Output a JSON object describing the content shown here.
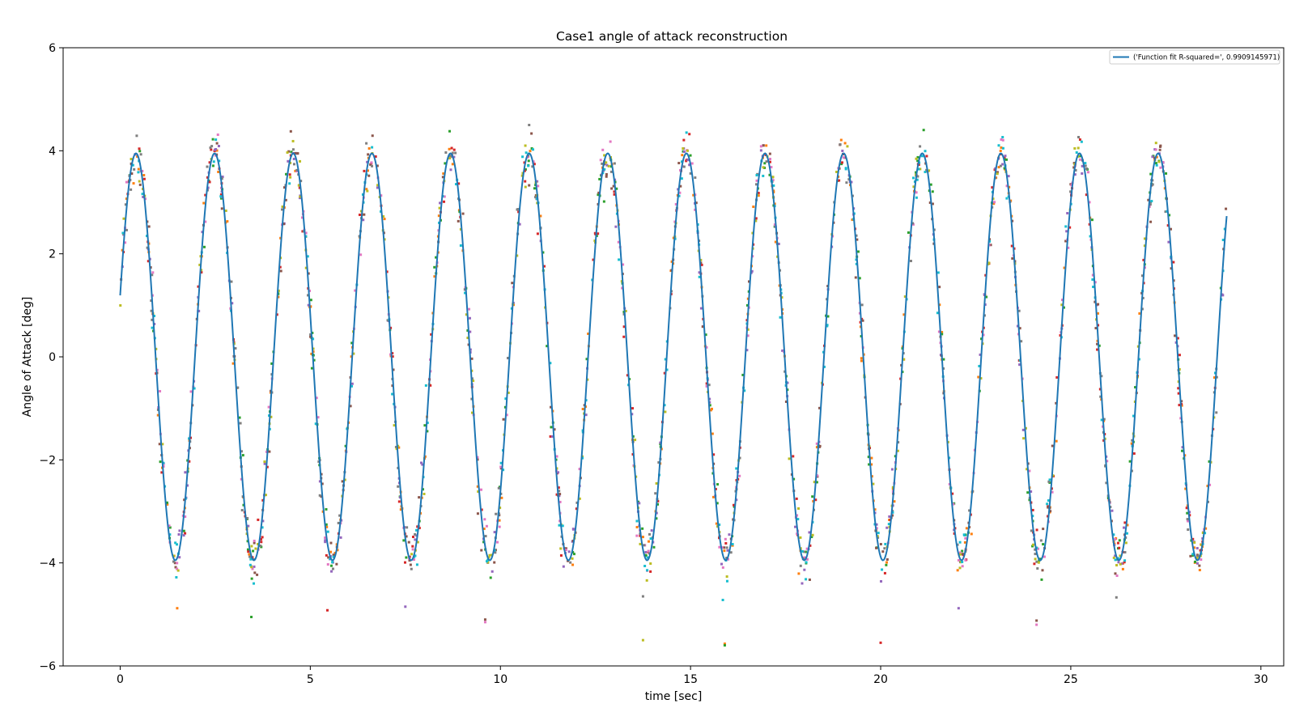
{
  "chart_data": {
    "type": "scatter",
    "title": "Case1 angle of attack reconstruction",
    "xlabel": "time [sec]",
    "ylabel": "Angle of Attack [deg]",
    "xlim": [
      -1.5,
      30.6
    ],
    "ylim": [
      -6,
      6
    ],
    "xticks": [
      0,
      5,
      10,
      15,
      20,
      25,
      30
    ],
    "yticks": [
      -6,
      -4,
      -2,
      0,
      2,
      4,
      6
    ],
    "xtick_labels": [
      "0",
      "5",
      "10",
      "15",
      "20",
      "25",
      "30"
    ],
    "ytick_labels": [
      "−6",
      "−4",
      "−2",
      "0",
      "2",
      "4",
      "6"
    ],
    "grid": false,
    "legend": {
      "position": "top-right",
      "entries": [
        "('Function fit R-squared=', 0.9909145971)"
      ]
    },
    "fit_function": {
      "name": "('Function fit R-squared=', 0.9909145971)",
      "model": "A*sin(2*pi*f*t + phi)",
      "amplitude": 3.95,
      "frequency_hz": 0.4836,
      "phase_rad": 0.3066,
      "t_range": [
        0,
        29.1
      ],
      "color": "#1f77b4"
    },
    "measurement_series": {
      "count_per_series": 230,
      "noise_deg": 0.22,
      "outliers": [
        [
          1.5,
          -4.88
        ],
        [
          3.45,
          -5.05
        ],
        [
          5.45,
          -4.92
        ],
        [
          7.5,
          -4.85
        ],
        [
          9.6,
          -5.1
        ],
        [
          9.6,
          -5.15
        ],
        [
          13.75,
          -4.65
        ],
        [
          13.75,
          -5.5
        ],
        [
          15.85,
          -4.72
        ],
        [
          15.9,
          -5.57
        ],
        [
          15.9,
          -5.6
        ],
        [
          20.0,
          -5.55
        ],
        [
          22.05,
          -4.88
        ],
        [
          24.1,
          -5.12
        ],
        [
          24.1,
          -5.2
        ],
        [
          26.2,
          -4.67
        ]
      ],
      "colors": [
        "#ff7f0e",
        "#2ca02c",
        "#d62728",
        "#9467bd",
        "#8c564b",
        "#e377c2",
        "#7f7f7f",
        "#bcbd22",
        "#17becf"
      ]
    }
  }
}
